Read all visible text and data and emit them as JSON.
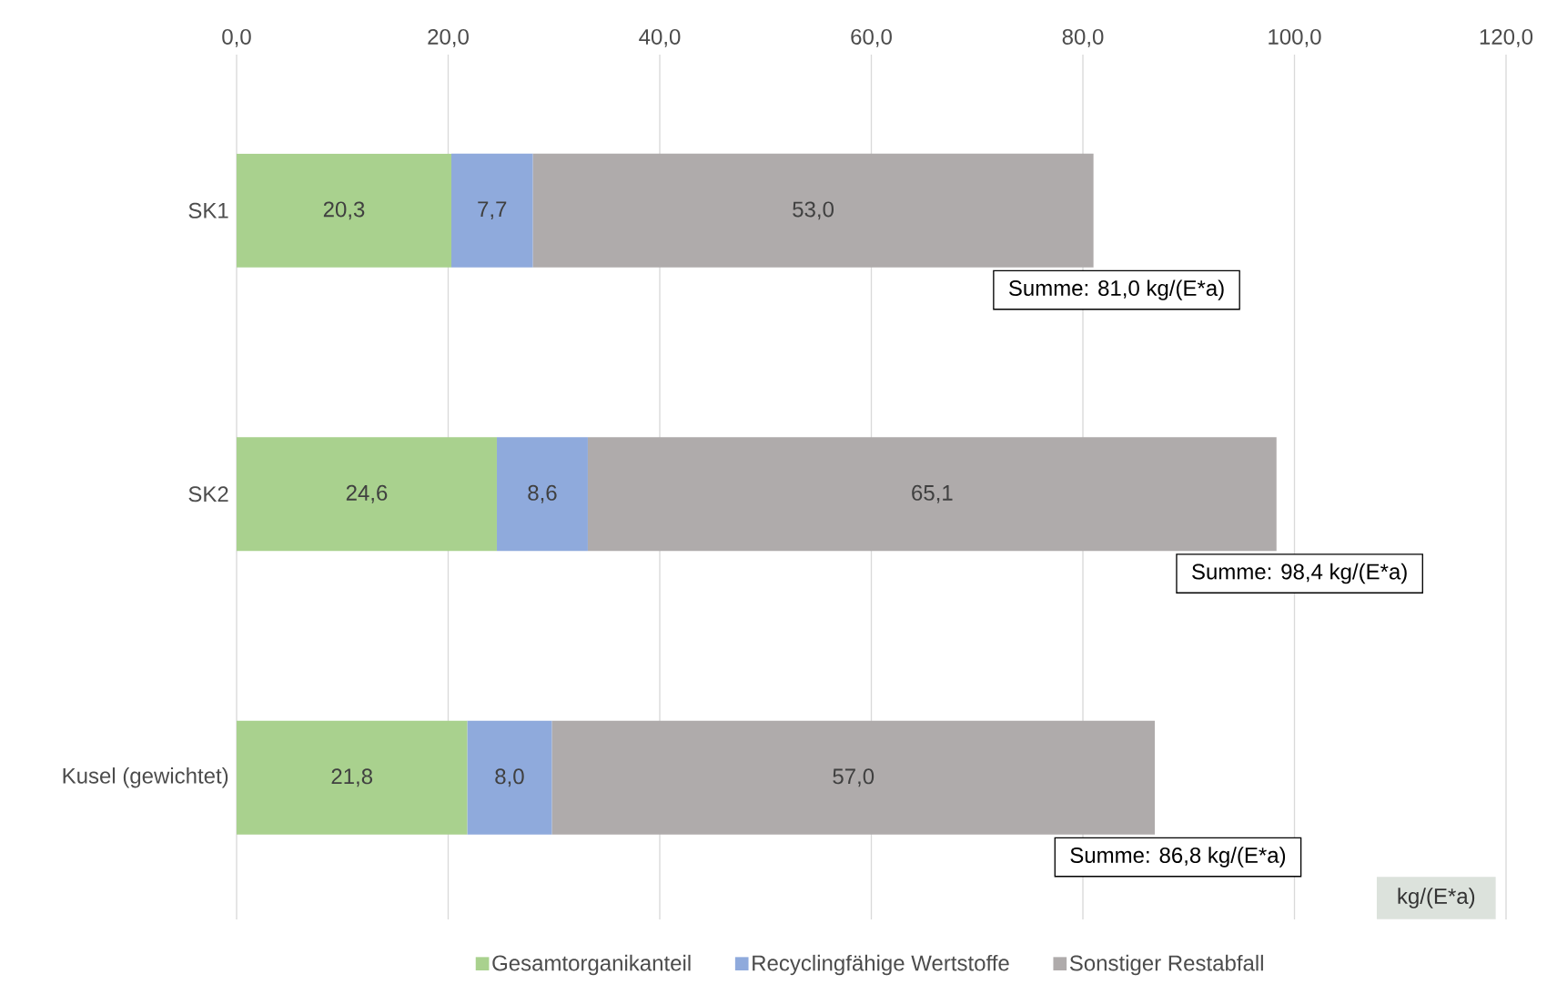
{
  "chart_data": {
    "type": "bar",
    "orientation": "horizontal",
    "stacked": true,
    "categories": [
      "SK1",
      "SK2",
      "Kusel (gewichtet)"
    ],
    "series": [
      {
        "name": "Gesamtorganikanteil",
        "color": "#a9d18e",
        "values": [
          20.3,
          24.6,
          21.8
        ],
        "value_labels": [
          "20,3",
          "24,6",
          "21,8"
        ]
      },
      {
        "name": "Recyclingfähige Wertstoffe",
        "color": "#8faadc",
        "values": [
          7.7,
          8.6,
          8.0
        ],
        "value_labels": [
          "7,7",
          "8,6",
          "8,0"
        ]
      },
      {
        "name": "Sonstiger Restabfall",
        "color": "#afabab",
        "values": [
          53.0,
          65.1,
          57.0
        ],
        "value_labels": [
          "53,0",
          "65,1",
          "57,0"
        ]
      }
    ],
    "totals": [
      "Summe: 81,0 kg/(E*a)",
      "Summe: 98,4 kg/(E*a)",
      "Summe: 86,8 kg/(E*a)"
    ],
    "xlabel": "kg/(E*a)",
    "xlim": [
      0,
      120
    ],
    "xticks": [
      {
        "value": 0,
        "label": "0,0"
      },
      {
        "value": 20,
        "label": "20,0"
      },
      {
        "value": 40,
        "label": "40,0"
      },
      {
        "value": 60,
        "label": "60,0"
      },
      {
        "value": 80,
        "label": "80,0"
      },
      {
        "value": 100,
        "label": "100,0"
      },
      {
        "value": 120,
        "label": "120,0"
      }
    ],
    "grid": "x",
    "legend": "bottom"
  }
}
